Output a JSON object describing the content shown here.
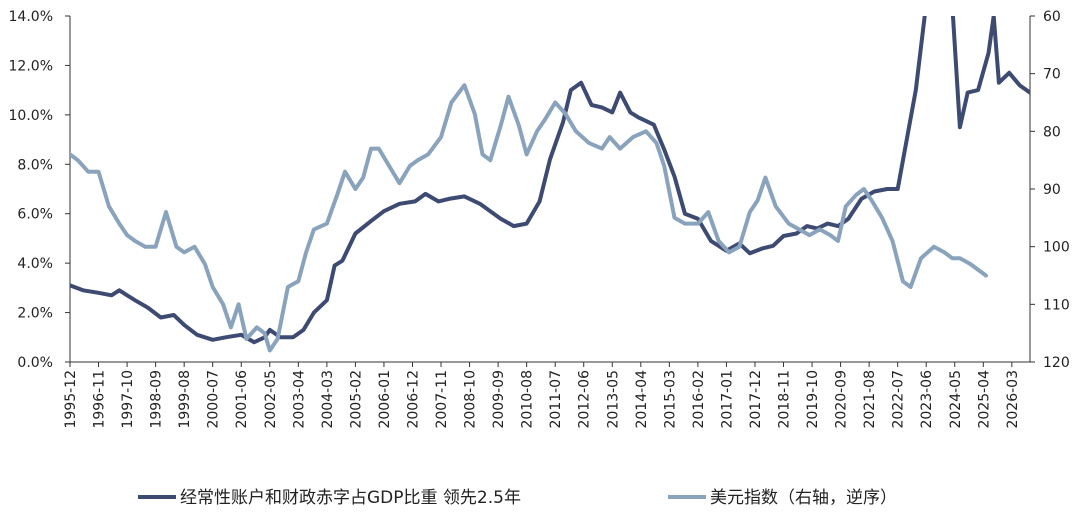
{
  "chart_data": {
    "type": "line",
    "title": "",
    "colors": {
      "deficit": "#3d4b73",
      "dollar": "#8aa3bd",
      "axis": "#333333"
    },
    "y_left": {
      "min": 0,
      "max": 14,
      "step": 2,
      "ticks": [
        "0.0%",
        "2.0%",
        "4.0%",
        "6.0%",
        "8.0%",
        "10.0%",
        "12.0%",
        "14.0%"
      ]
    },
    "y_right": {
      "min": 60,
      "max": 120,
      "step": 10,
      "inverted": true,
      "ticks": [
        "60",
        "70",
        "80",
        "90",
        "100",
        "110",
        "120"
      ]
    },
    "x": {
      "start": "1995-12",
      "end": "2026-10",
      "ticks": [
        "1995-12",
        "1996-11",
        "1997-10",
        "1998-09",
        "1999-08",
        "2000-07",
        "2001-06",
        "2002-05",
        "2003-04",
        "2004-03",
        "2005-02",
        "2006-01",
        "2006-12",
        "2007-11",
        "2008-10",
        "2009-09",
        "2010-08",
        "2011-07",
        "2012-06",
        "2013-05",
        "2014-04",
        "2015-03",
        "2016-02",
        "2017-01",
        "2017-12",
        "2018-11",
        "2019-10",
        "2020-09",
        "2021-08",
        "2022-07",
        "2023-06",
        "2024-05",
        "2025-04",
        "2026-03"
      ]
    },
    "series": [
      {
        "name": "经常性账户和财政赤字占GDP比重 领先2.5年",
        "axis": "left",
        "points": [
          [
            "1995-12",
            3.1
          ],
          [
            "1996-05",
            2.9
          ],
          [
            "1996-11",
            2.8
          ],
          [
            "1997-04",
            2.7
          ],
          [
            "1997-07",
            2.9
          ],
          [
            "1998-01",
            2.5
          ],
          [
            "1998-06",
            2.2
          ],
          [
            "1998-11",
            1.8
          ],
          [
            "1999-04",
            1.9
          ],
          [
            "1999-08",
            1.5
          ],
          [
            "2000-01",
            1.1
          ],
          [
            "2000-07",
            0.9
          ],
          [
            "2000-12",
            1.0
          ],
          [
            "2001-06",
            1.1
          ],
          [
            "2001-11",
            0.8
          ],
          [
            "2002-03",
            1.0
          ],
          [
            "2002-05",
            1.3
          ],
          [
            "2002-09",
            1.0
          ],
          [
            "2003-02",
            1.0
          ],
          [
            "2003-06",
            1.3
          ],
          [
            "2003-10",
            2.0
          ],
          [
            "2004-03",
            2.5
          ],
          [
            "2004-06",
            3.9
          ],
          [
            "2004-09",
            4.1
          ],
          [
            "2005-02",
            5.2
          ],
          [
            "2005-08",
            5.7
          ],
          [
            "2006-01",
            6.1
          ],
          [
            "2006-07",
            6.4
          ],
          [
            "2007-01",
            6.5
          ],
          [
            "2007-05",
            6.8
          ],
          [
            "2007-10",
            6.5
          ],
          [
            "2008-02",
            6.6
          ],
          [
            "2008-08",
            6.7
          ],
          [
            "2009-02",
            6.4
          ],
          [
            "2009-06",
            6.1
          ],
          [
            "2009-10",
            5.8
          ],
          [
            "2010-03",
            5.5
          ],
          [
            "2010-08",
            5.6
          ],
          [
            "2011-01",
            6.5
          ],
          [
            "2011-05",
            8.2
          ],
          [
            "2011-10",
            9.7
          ],
          [
            "2012-01",
            11.0
          ],
          [
            "2012-05",
            11.3
          ],
          [
            "2012-09",
            10.4
          ],
          [
            "2013-01",
            10.3
          ],
          [
            "2013-05",
            10.1
          ],
          [
            "2013-08",
            10.9
          ],
          [
            "2013-12",
            10.1
          ],
          [
            "2014-03",
            9.9
          ],
          [
            "2014-09",
            9.6
          ],
          [
            "2015-01",
            8.6
          ],
          [
            "2015-05",
            7.5
          ],
          [
            "2015-09",
            6.0
          ],
          [
            "2016-02",
            5.8
          ],
          [
            "2016-07",
            4.9
          ],
          [
            "2017-01",
            4.5
          ],
          [
            "2017-06",
            4.8
          ],
          [
            "2017-10",
            4.4
          ],
          [
            "2018-03",
            4.6
          ],
          [
            "2018-07",
            4.7
          ],
          [
            "2018-11",
            5.1
          ],
          [
            "2019-04",
            5.2
          ],
          [
            "2019-08",
            5.5
          ],
          [
            "2019-12",
            5.4
          ],
          [
            "2020-04",
            5.6
          ],
          [
            "2020-08",
            5.5
          ],
          [
            "2020-12",
            5.8
          ],
          [
            "2021-05",
            6.6
          ],
          [
            "2021-10",
            6.9
          ],
          [
            "2022-03",
            7.0
          ],
          [
            "2022-07",
            7.0
          ],
          [
            "2023-02",
            11.0
          ],
          [
            "2023-06",
            14.5
          ],
          [
            "2023-09",
            15.5
          ],
          [
            "2024-01",
            16.0
          ],
          [
            "2024-04",
            14.5
          ],
          [
            "2024-07",
            9.5
          ],
          [
            "2024-10",
            10.9
          ],
          [
            "2025-02",
            11.0
          ],
          [
            "2025-06",
            12.5
          ],
          [
            "2025-08",
            14.0
          ],
          [
            "2025-10",
            11.3
          ],
          [
            "2026-02",
            11.7
          ],
          [
            "2026-06",
            11.2
          ],
          [
            "2026-10",
            10.9
          ]
        ]
      },
      {
        "name": "美元指数（右轴，逆序）",
        "axis": "right",
        "points": [
          [
            "1995-12",
            84
          ],
          [
            "1996-03",
            85
          ],
          [
            "1996-07",
            87
          ],
          [
            "1996-11",
            87
          ],
          [
            "1997-03",
            93
          ],
          [
            "1997-07",
            96
          ],
          [
            "1997-10",
            98
          ],
          [
            "1998-01",
            99
          ],
          [
            "1998-05",
            100
          ],
          [
            "1998-09",
            100
          ],
          [
            "1999-01",
            94
          ],
          [
            "1999-05",
            100
          ],
          [
            "1999-08",
            101
          ],
          [
            "1999-12",
            100
          ],
          [
            "2000-04",
            103
          ],
          [
            "2000-07",
            107
          ],
          [
            "2000-11",
            110
          ],
          [
            "2001-02",
            114
          ],
          [
            "2001-05",
            110
          ],
          [
            "2001-08",
            116
          ],
          [
            "2001-12",
            114
          ],
          [
            "2002-03",
            115
          ],
          [
            "2002-05",
            118
          ],
          [
            "2002-08",
            116
          ],
          [
            "2002-12",
            107
          ],
          [
            "2003-04",
            106
          ],
          [
            "2003-07",
            101
          ],
          [
            "2003-10",
            97
          ],
          [
            "2004-03",
            96
          ],
          [
            "2004-07",
            91
          ],
          [
            "2004-10",
            87
          ],
          [
            "2005-02",
            90
          ],
          [
            "2005-05",
            88
          ],
          [
            "2005-08",
            83
          ],
          [
            "2005-11",
            83
          ],
          [
            "2006-03",
            86
          ],
          [
            "2006-07",
            89
          ],
          [
            "2006-11",
            86
          ],
          [
            "2007-02",
            85
          ],
          [
            "2007-06",
            84
          ],
          [
            "2007-11",
            81
          ],
          [
            "2008-03",
            75
          ],
          [
            "2008-08",
            72
          ],
          [
            "2008-12",
            77
          ],
          [
            "2009-03",
            84
          ],
          [
            "2009-06",
            85
          ],
          [
            "2009-10",
            79
          ],
          [
            "2010-01",
            74
          ],
          [
            "2010-05",
            79
          ],
          [
            "2010-08",
            84
          ],
          [
            "2010-12",
            80
          ],
          [
            "2011-03",
            78
          ],
          [
            "2011-07",
            75
          ],
          [
            "2011-11",
            77
          ],
          [
            "2012-03",
            80
          ],
          [
            "2012-08",
            82
          ],
          [
            "2013-01",
            83
          ],
          [
            "2013-04",
            81
          ],
          [
            "2013-08",
            83
          ],
          [
            "2014-01",
            81
          ],
          [
            "2014-06",
            80
          ],
          [
            "2014-10",
            82
          ],
          [
            "2015-01",
            86
          ],
          [
            "2015-05",
            95
          ],
          [
            "2015-09",
            96
          ],
          [
            "2016-02",
            96
          ],
          [
            "2016-06",
            94
          ],
          [
            "2016-10",
            99
          ],
          [
            "2017-02",
            101
          ],
          [
            "2017-06",
            100
          ],
          [
            "2017-10",
            94
          ],
          [
            "2018-01",
            92
          ],
          [
            "2018-04",
            88
          ],
          [
            "2018-08",
            93
          ],
          [
            "2019-01",
            96
          ],
          [
            "2019-05",
            97
          ],
          [
            "2019-09",
            98
          ],
          [
            "2020-01",
            97
          ],
          [
            "2020-05",
            98
          ],
          [
            "2020-08",
            99
          ],
          [
            "2020-11",
            93
          ],
          [
            "2021-03",
            91
          ],
          [
            "2021-06",
            90
          ],
          [
            "2021-09",
            92
          ],
          [
            "2022-01",
            95
          ],
          [
            "2022-05",
            99
          ],
          [
            "2022-09",
            106
          ],
          [
            "2022-12",
            107
          ],
          [
            "2023-04",
            102
          ],
          [
            "2023-09",
            100
          ],
          [
            "2024-01",
            101
          ],
          [
            "2024-04",
            102
          ],
          [
            "2024-07",
            102
          ],
          [
            "2024-11",
            103
          ],
          [
            "2025-02",
            104
          ],
          [
            "2025-05",
            105
          ]
        ]
      }
    ],
    "legend": {
      "position": "bottom"
    }
  }
}
